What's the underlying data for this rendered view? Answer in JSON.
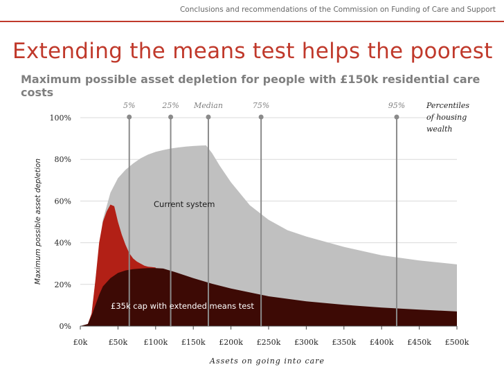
{
  "header": {
    "breadcrumb": "Conclusions and recommendations of the Commission on Funding of Care and Support"
  },
  "title": "Extending the means test helps the poorest",
  "subtitle": "Maximum possible asset depletion for people with £150k residential care costs",
  "colors": {
    "accent": "#c0392b",
    "current_system": "#c0c0c0",
    "proposed": "#3d0a05",
    "highlight": "#b22016",
    "percentile_line": "#8a8a8a"
  },
  "chart_data": {
    "type": "area",
    "ylabel": "Maximum possible asset depletion",
    "xlabel": "Assets on going into care",
    "x_ticks": [
      "£0k",
      "£50k",
      "£100k",
      "£150k",
      "£200k",
      "£250k",
      "£300k",
      "£350k",
      "£400k",
      "£450k",
      "£500k"
    ],
    "y_ticks": [
      "0%",
      "20%",
      "40%",
      "60%",
      "80%",
      "100%"
    ],
    "xlim": [
      0,
      500
    ],
    "ylim": [
      0,
      100
    ],
    "grid": true,
    "series": [
      {
        "name": "Current system",
        "x": [
          0,
          10,
          15,
          20,
          25,
          30,
          40,
          50,
          60,
          70,
          80,
          90,
          100,
          110,
          120,
          130,
          140,
          150,
          160,
          167,
          175,
          185,
          200,
          225,
          250,
          275,
          300,
          350,
          400,
          450,
          500
        ],
        "values": [
          0,
          1,
          6,
          22,
          38,
          51,
          64,
          71,
          75,
          78,
          80.5,
          82.3,
          83.6,
          84.5,
          85.2,
          85.7,
          86.1,
          86.4,
          86.6,
          86.7,
          83,
          77,
          69,
          58,
          51,
          46,
          43,
          38,
          34,
          31.5,
          29.6
        ]
      },
      {
        "name": "Current system (highlighted section)",
        "x": [
          0,
          10,
          15,
          20,
          25,
          30,
          35,
          40,
          45,
          50,
          55,
          60,
          65,
          70,
          75,
          80,
          85,
          90,
          95,
          100
        ],
        "values": [
          0,
          1,
          6,
          22,
          40,
          50,
          55,
          58.3,
          57.5,
          50,
          44,
          39,
          35,
          32.5,
          31,
          30,
          29,
          28.5,
          28.3,
          28.1
        ]
      },
      {
        "name": "£35k cap with extended means test",
        "x": [
          0,
          10,
          15,
          20,
          25,
          30,
          40,
          50,
          60,
          70,
          80,
          90,
          100,
          110,
          125,
          150,
          175,
          200,
          250,
          300,
          350,
          400,
          450,
          500
        ],
        "values": [
          0,
          1,
          5,
          10,
          15,
          19,
          23,
          25.5,
          26.7,
          27.3,
          27.6,
          27.8,
          27.8,
          27.6,
          26,
          23,
          20.3,
          18,
          14.3,
          11.9,
          10.2,
          8.9,
          7.9,
          7.0
        ]
      }
    ],
    "percentiles": {
      "legend": [
        "Percentiles",
        "of housing",
        "wealth"
      ],
      "items": [
        {
          "label": "5%",
          "x": 65
        },
        {
          "label": "25%",
          "x": 120
        },
        {
          "label": "Median",
          "x": 170
        },
        {
          "label": "75%",
          "x": 240
        },
        {
          "label": "95%",
          "x": 420
        }
      ]
    },
    "annotations": [
      "Current system",
      "£35k cap with extended means test"
    ]
  }
}
